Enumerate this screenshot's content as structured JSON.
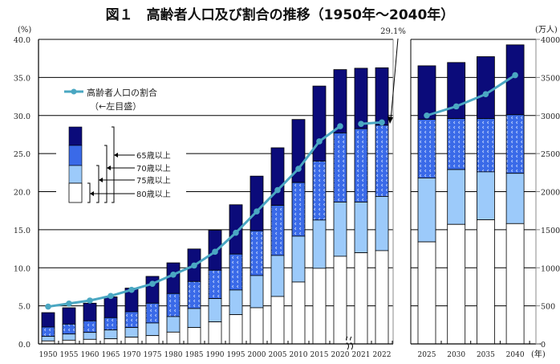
{
  "chart_data": {
    "type": "bar",
    "title": "図１　高齢者人口及び割合の推移（1950年～2040年）",
    "left_axis": {
      "label": "(%)",
      "range": [
        0,
        40
      ],
      "ticks": [
        "0.0",
        "5.0",
        "10.0",
        "15.0",
        "20.0",
        "25.0",
        "30.0",
        "35.0",
        "40.0"
      ]
    },
    "right_axis": {
      "label": "(万人)",
      "range": [
        0,
        4000
      ],
      "ticks": [
        "0",
        "500",
        "1000",
        "1500",
        "2000",
        "2500",
        "3000",
        "3500",
        "4000"
      ]
    },
    "xlabel": "(年)",
    "grid": true,
    "categories": [
      "1950",
      "1955",
      "1960",
      "1965",
      "1970",
      "1975",
      "1980",
      "1985",
      "1990",
      "1995",
      "2000",
      "2005",
      "2010",
      "2015",
      "2020",
      "2021",
      "2022",
      "2025",
      "2030",
      "2035",
      "2040"
    ],
    "series": [
      {
        "name": "65歳以上",
        "color": "#0b0b7a",
        "values": [
          411,
          475,
          535,
          618,
          733,
          887,
          1065,
          1247,
          1493,
          1828,
          2204,
          2576,
          2948,
          3387,
          3603,
          3621,
          3627,
          3653,
          3696,
          3773,
          3928
        ]
      },
      {
        "name": "70歳以上",
        "color": "#3a6ae8",
        "values": [
          222,
          260,
          303,
          345,
          423,
          535,
          662,
          820,
          968,
          1180,
          1486,
          1820,
          2120,
          2401,
          2771,
          2827,
          2873,
          2950,
          2960,
          2960,
          3010
        ]
      },
      {
        "name": "75歳以上",
        "color": "#9ccafa",
        "values": [
          99,
          130,
          151,
          183,
          215,
          275,
          359,
          465,
          595,
          708,
          898,
          1162,
          1415,
          1627,
          1863,
          1863,
          1937,
          2180,
          2290,
          2260,
          2240
        ]
      },
      {
        "name": "80歳以上",
        "color": "#ffffff",
        "values": [
          39,
          49,
          60,
          67,
          88,
          109,
          155,
          215,
          289,
          384,
          475,
          623,
          813,
          993,
          1151,
          1197,
          1225,
          1340,
          1570,
          1630,
          1580
        ]
      }
    ],
    "line": {
      "name": "高齢者人口の割合",
      "note": "（←左目盛）",
      "color": "#4aa7c2",
      "values": [
        4.9,
        5.3,
        5.7,
        6.3,
        7.1,
        7.9,
        9.1,
        10.3,
        12.1,
        14.6,
        17.4,
        20.2,
        23.0,
        26.6,
        28.6,
        28.9,
        29.1,
        30.0,
        31.2,
        32.8,
        35.3
      ]
    },
    "annotation": "29.1%",
    "legend_labels": [
      "65歳以上",
      "70歳以上",
      "75歳以上",
      "80歳以上"
    ]
  }
}
